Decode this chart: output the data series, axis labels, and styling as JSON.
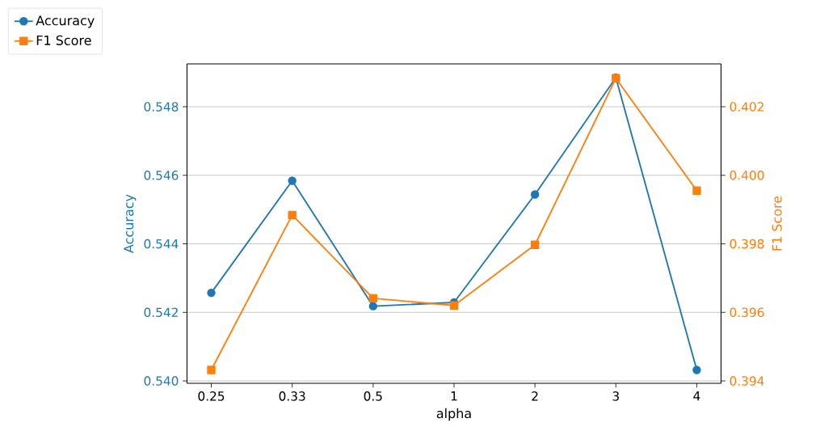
{
  "chart_data": {
    "type": "line",
    "xlabel": "alpha",
    "ylabel": "Accuracy",
    "y2label": "F1 Score",
    "categories": [
      "0.25",
      "0.33",
      "0.5",
      "1",
      "2",
      "3",
      "4"
    ],
    "series": [
      {
        "name": "Accuracy",
        "color": "#1f77b4",
        "marker": "circle",
        "values": [
          0.54257,
          0.54584,
          0.54218,
          0.54229,
          0.54544,
          0.54885,
          0.54032
        ]
      },
      {
        "name": "F1 Score",
        "color": "#ff7f0e",
        "marker": "square",
        "axis": "y2",
        "values": [
          0.39432,
          0.39884,
          0.39641,
          0.3962,
          0.39797,
          0.40283,
          0.39955
        ]
      }
    ],
    "ylim": [
      0.53993,
      0.54925
    ],
    "yticks": [
      {
        "value": 0.54,
        "label": "0.540"
      },
      {
        "value": 0.542,
        "label": "0.542"
      },
      {
        "value": 0.544,
        "label": "0.544"
      },
      {
        "value": 0.546,
        "label": "0.546"
      },
      {
        "value": 0.548,
        "label": "0.548"
      }
    ],
    "y2lim": [
      0.39393,
      0.40325
    ],
    "y2ticks": [
      {
        "value": 0.394,
        "label": "0.394"
      },
      {
        "value": 0.396,
        "label": "0.396"
      },
      {
        "value": 0.398,
        "label": "0.398"
      },
      {
        "value": 0.4,
        "label": "0.400"
      },
      {
        "value": 0.402,
        "label": "0.402"
      }
    ],
    "grid": "y",
    "legend": "top left",
    "line_style": "solid"
  }
}
